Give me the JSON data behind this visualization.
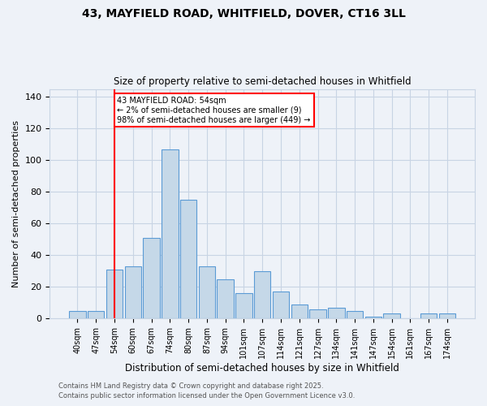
{
  "title_line1": "43, MAYFIELD ROAD, WHITFIELD, DOVER, CT16 3LL",
  "title_line2": "Size of property relative to semi-detached houses in Whitfield",
  "xlabel": "Distribution of semi-detached houses by size in Whitfield",
  "ylabel": "Number of semi-detached properties",
  "bar_labels": [
    "40sqm",
    "47sqm",
    "54sqm",
    "60sqm",
    "67sqm",
    "74sqm",
    "80sqm",
    "87sqm",
    "94sqm",
    "101sqm",
    "107sqm",
    "114sqm",
    "121sqm",
    "127sqm",
    "134sqm",
    "141sqm",
    "147sqm",
    "154sqm",
    "161sqm",
    "167sqm",
    "174sqm"
  ],
  "bar_values": [
    5,
    5,
    31,
    33,
    51,
    107,
    75,
    33,
    25,
    16,
    30,
    17,
    9,
    6,
    7,
    5,
    1,
    3,
    0,
    3,
    3
  ],
  "bar_color": "#c5d8e8",
  "bar_edge_color": "#5b9bd5",
  "annotation_box_text": "43 MAYFIELD ROAD: 54sqm\n← 2% of semi-detached houses are smaller (9)\n98% of semi-detached houses are larger (449) →",
  "annotation_box_facecolor": "white",
  "annotation_box_edgecolor": "red",
  "vline_color": "red",
  "vline_x_label": "54sqm",
  "ylim": [
    0,
    145
  ],
  "yticks": [
    0,
    20,
    40,
    60,
    80,
    100,
    120,
    140
  ],
  "grid_color": "#c8d4e4",
  "background_color": "#eef2f8",
  "plot_bg_color": "#eef2f8",
  "footer_line1": "Contains HM Land Registry data © Crown copyright and database right 2025.",
  "footer_line2": "Contains public sector information licensed under the Open Government Licence v3.0."
}
